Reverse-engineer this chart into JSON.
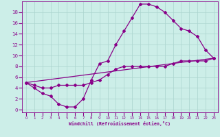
{
  "xlabel": "Windchill (Refroidissement éolien,°C)",
  "background_color": "#cceee8",
  "grid_color": "#aad4ce",
  "line_color": "#880088",
  "xlim": [
    -0.5,
    23.5
  ],
  "ylim": [
    -0.5,
    20
  ],
  "xticks": [
    0,
    1,
    2,
    3,
    4,
    5,
    6,
    7,
    8,
    9,
    10,
    11,
    12,
    13,
    14,
    15,
    16,
    17,
    18,
    19,
    20,
    21,
    22,
    23
  ],
  "yticks": [
    0,
    2,
    4,
    6,
    8,
    10,
    12,
    14,
    16,
    18
  ],
  "line1_x": [
    0,
    1,
    2,
    3,
    4,
    5,
    6,
    7,
    8,
    9,
    10,
    11,
    12,
    13,
    14,
    15,
    16,
    17,
    18,
    19,
    20,
    21,
    22,
    23
  ],
  "line1_y": [
    5,
    4,
    3,
    2.5,
    1,
    0.5,
    0.5,
    2,
    5.5,
    8.5,
    9,
    12,
    14.5,
    17,
    19.5,
    19.5,
    19,
    18,
    16.5,
    15,
    14.5,
    13.5,
    11,
    9.5
  ],
  "line2_x": [
    0,
    23
  ],
  "line2_y": [
    5,
    9.5
  ],
  "line3_x": [
    0,
    1,
    2,
    3,
    4,
    5,
    6,
    7,
    8,
    9,
    10,
    11,
    12,
    13,
    14,
    15,
    16,
    17,
    18,
    19,
    20,
    21,
    22,
    23
  ],
  "line3_y": [
    5,
    4.5,
    4,
    4,
    4.5,
    4.5,
    4.5,
    4.5,
    5,
    5.5,
    6.5,
    7.5,
    8,
    8,
    8,
    8,
    8,
    8,
    8.5,
    9,
    9,
    9,
    9,
    9.5
  ]
}
